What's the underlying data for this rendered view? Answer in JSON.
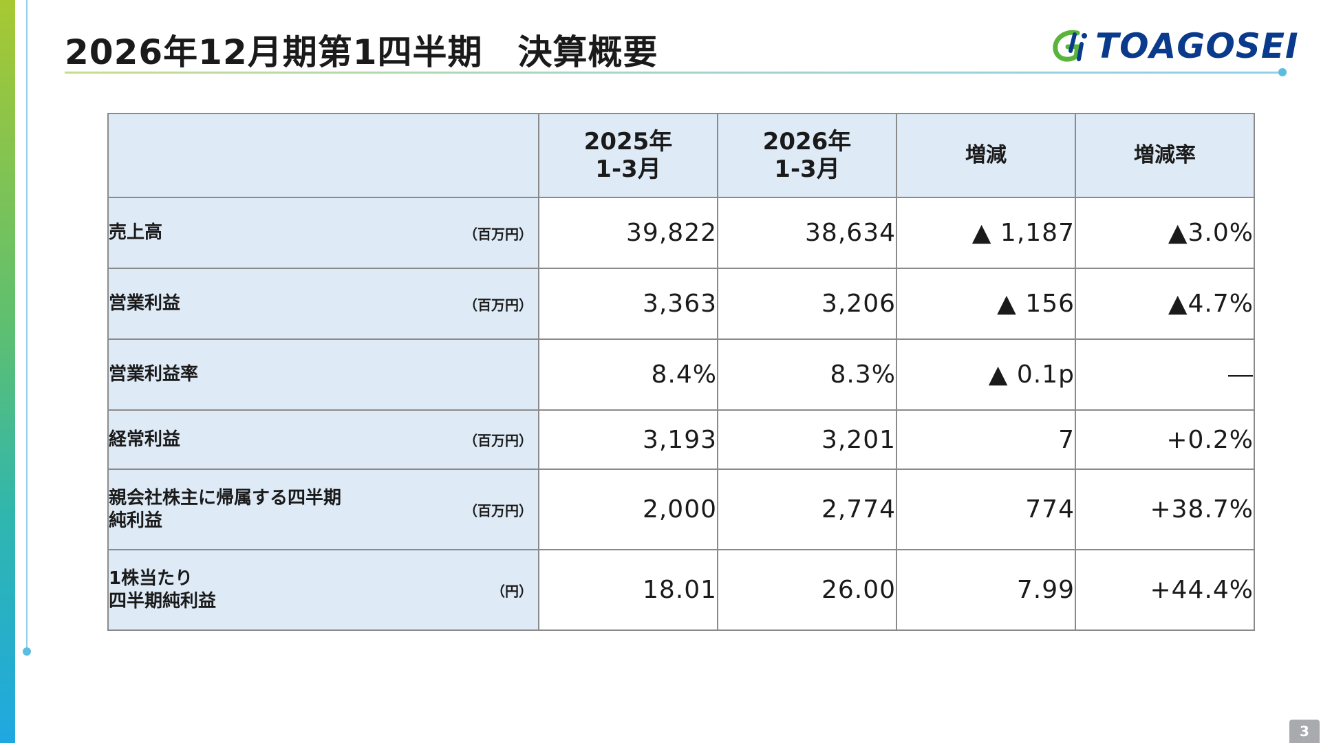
{
  "page": {
    "title": "2026年12月期第1四半期　決算概要",
    "logo_text": "TOAGOSEI",
    "page_number": "3"
  },
  "table": {
    "headers": {
      "col1": [
        "2025年",
        "1-3月"
      ],
      "col2": [
        "2026年",
        "1-3月"
      ],
      "col3": "増減",
      "col4": "増減率"
    },
    "rows": [
      {
        "label": [
          "売上高"
        ],
        "unit": "（百万円）",
        "prev": "39,822",
        "curr": "38,634",
        "diff": "▲ 1,187",
        "rate": "▲3.0%"
      },
      {
        "label": [
          "営業利益"
        ],
        "unit": "（百万円）",
        "prev": "3,363",
        "curr": "3,206",
        "diff": "▲ 156",
        "rate": "▲4.7%"
      },
      {
        "label": [
          "営業利益率"
        ],
        "unit": "",
        "prev": "8.4%",
        "curr": "8.3%",
        "diff": "▲ 0.1p",
        "rate": "―"
      },
      {
        "label": [
          "経常利益"
        ],
        "unit": "（百万円）",
        "prev": "3,193",
        "curr": "3,201",
        "diff": "7",
        "rate": "+0.2%"
      },
      {
        "label": [
          "親会社株主に帰属する四半期",
          "純利益"
        ],
        "unit": "（百万円）",
        "prev": "2,000",
        "curr": "2,774",
        "diff": "774",
        "rate": "+38.7%"
      },
      {
        "label": [
          "1株当たり",
          "四半期純利益"
        ],
        "unit": "（円）",
        "prev": "18.01",
        "curr": "26.00",
        "diff": "7.99",
        "rate": "+44.4%"
      }
    ]
  },
  "colors": {
    "header_bg": "#deeaf6",
    "logo_blue": "#0a3a8c",
    "logo_green": "#5ab43c"
  },
  "icons": {
    "logo_mark": "toagosei-logo-icon"
  }
}
